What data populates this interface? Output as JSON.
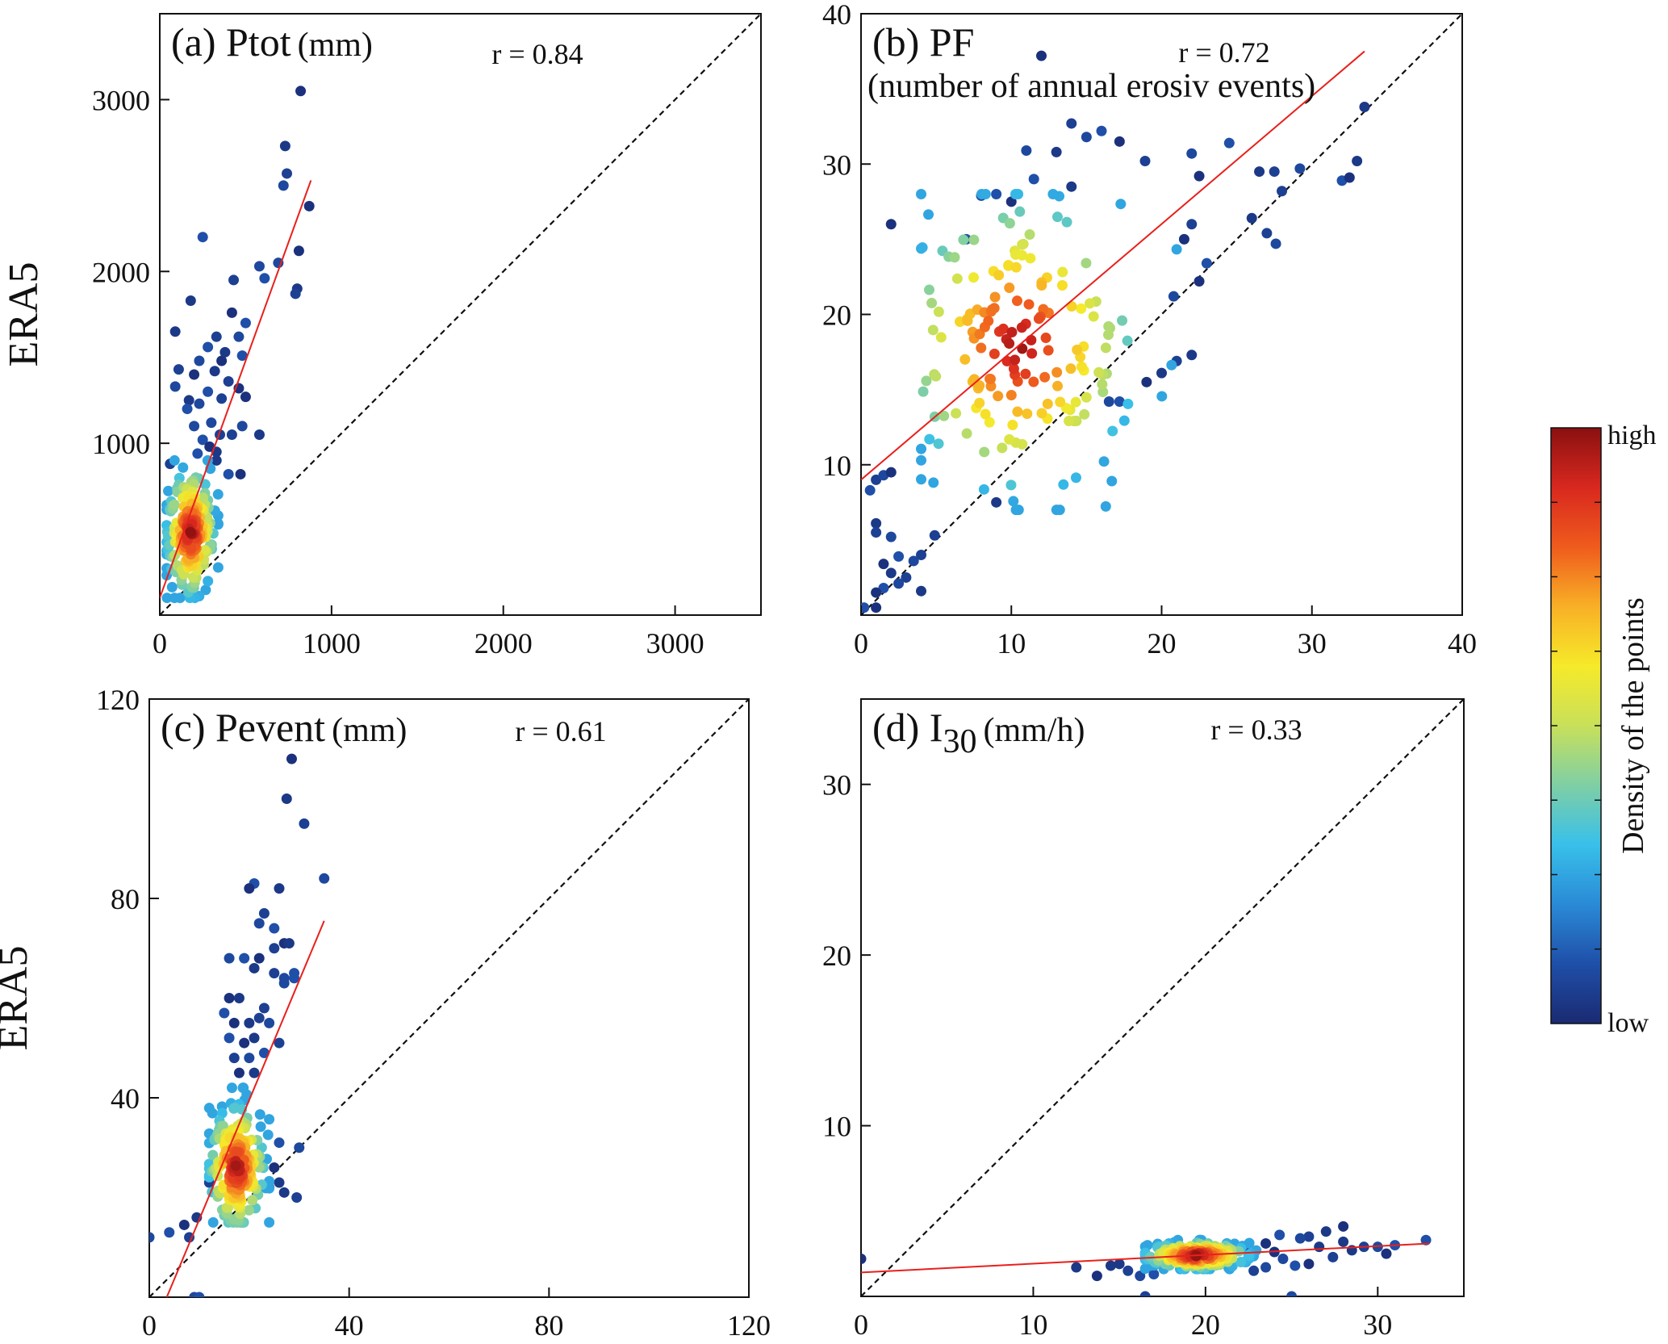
{
  "chart_data": [
    {
      "id": "a",
      "type": "scatter",
      "title": "(a) Ptot",
      "unit": "(mm)",
      "r_label": "r = 0.84",
      "ylabel": "ERA5",
      "xlim": [
        0,
        3500
      ],
      "ylim": [
        0,
        3500
      ],
      "xticks": [
        "0",
        "1000",
        "2000",
        "3000"
      ],
      "xtick_values": [
        0,
        1000,
        2000,
        3000
      ],
      "yticks": [
        "1000",
        "2000",
        "3000"
      ],
      "ytick_values": [
        1000,
        2000,
        3000
      ],
      "fit_line": [
        [
          0,
          100
        ],
        [
          880,
          2530
        ]
      ],
      "identity_line": true,
      "points": [
        [
          820,
          3050
        ],
        [
          730,
          2730
        ],
        [
          740,
          2570
        ],
        [
          720,
          2500
        ],
        [
          250,
          2200
        ],
        [
          870,
          2380
        ],
        [
          180,
          1830
        ],
        [
          430,
          1950
        ],
        [
          580,
          2030
        ],
        [
          610,
          1960
        ],
        [
          810,
          2120
        ],
        [
          800,
          1900
        ],
        [
          790,
          1870
        ],
        [
          690,
          2050
        ],
        [
          500,
          1700
        ],
        [
          420,
          1760
        ],
        [
          90,
          1650
        ],
        [
          330,
          1620
        ],
        [
          460,
          1620
        ],
        [
          280,
          1560
        ],
        [
          360,
          1480
        ],
        [
          380,
          1530
        ],
        [
          110,
          1430
        ],
        [
          230,
          1480
        ],
        [
          480,
          1510
        ],
        [
          200,
          1400
        ],
        [
          320,
          1420
        ],
        [
          400,
          1360
        ],
        [
          90,
          1330
        ],
        [
          280,
          1300
        ],
        [
          460,
          1320
        ],
        [
          170,
          1250
        ],
        [
          360,
          1260
        ],
        [
          230,
          1230
        ],
        [
          160,
          1200
        ],
        [
          500,
          1270
        ],
        [
          580,
          1050
        ],
        [
          420,
          1050
        ],
        [
          480,
          1100
        ],
        [
          400,
          820
        ],
        [
          470,
          820
        ],
        [
          330,
          900
        ],
        [
          60,
          880
        ],
        [
          200,
          1100
        ],
        [
          250,
          1020
        ],
        [
          290,
          980
        ],
        [
          330,
          950
        ],
        [
          350,
          1050
        ],
        [
          300,
          1120
        ],
        [
          220,
          940
        ]
      ],
      "cluster": {
        "x": [
          40,
          340
        ],
        "y": [
          100,
          900
        ],
        "center": [
          180,
          480
        ],
        "count": 200
      }
    },
    {
      "id": "b",
      "type": "scatter",
      "title": "(b) PF",
      "subtitle": "(number of annual erosiv events)",
      "r_label": "r = 0.72",
      "ylabel": "",
      "xlim": [
        0,
        40
      ],
      "ylim": [
        0,
        40
      ],
      "xticks": [
        "0",
        "10",
        "20",
        "30",
        "40"
      ],
      "xtick_values": [
        0,
        10,
        20,
        30,
        40
      ],
      "yticks": [
        "10",
        "20",
        "30",
        "40"
      ],
      "ytick_values": [
        10,
        20,
        30,
        40
      ],
      "fit_line": [
        [
          0,
          9
        ],
        [
          33.5,
          37.5
        ]
      ],
      "identity_line": true,
      "points": [
        [
          12,
          37.2
        ],
        [
          33.5,
          33.8
        ],
        [
          14,
          32.7
        ],
        [
          15,
          31.8
        ],
        [
          16,
          32.2
        ],
        [
          17.2,
          31.5
        ],
        [
          13,
          30.8
        ],
        [
          18.9,
          30.2
        ],
        [
          22,
          30.7
        ],
        [
          24.5,
          31.4
        ],
        [
          22.5,
          29.2
        ],
        [
          26.5,
          29.5
        ],
        [
          27.5,
          29.5
        ],
        [
          29.2,
          29.7
        ],
        [
          32,
          28.9
        ],
        [
          32.5,
          29.1
        ],
        [
          33,
          30.2
        ],
        [
          28,
          28.2
        ],
        [
          11,
          30.9
        ],
        [
          11.5,
          29
        ],
        [
          2,
          26
        ],
        [
          26,
          26.4
        ],
        [
          27,
          25.4
        ],
        [
          27.6,
          24.7
        ],
        [
          23,
          23.4
        ],
        [
          22.5,
          22.2
        ],
        [
          22,
          17.3
        ],
        [
          1,
          9
        ],
        [
          1.5,
          9.3
        ],
        [
          0.6,
          8.3
        ],
        [
          2,
          9.5
        ],
        [
          1,
          6.1
        ],
        [
          1,
          5.5
        ],
        [
          2,
          5.2
        ],
        [
          2.5,
          3.9
        ],
        [
          1.5,
          3.4
        ],
        [
          2,
          2.8
        ],
        [
          3,
          2.5
        ],
        [
          2.5,
          2.1
        ],
        [
          1.5,
          1.8
        ],
        [
          1,
          1.5
        ],
        [
          4,
          1.6
        ],
        [
          4,
          4
        ],
        [
          3.5,
          3.6
        ],
        [
          0.2,
          0.5
        ],
        [
          1,
          0.5
        ],
        [
          9,
          7.5
        ],
        [
          4.9,
          5.3
        ],
        [
          16.5,
          14.2
        ],
        [
          17.2,
          14.2
        ],
        [
          19,
          15.5
        ],
        [
          20,
          16.1
        ],
        [
          21,
          16.9
        ],
        [
          8,
          27.9
        ],
        [
          9,
          28
        ],
        [
          10,
          27.5
        ],
        [
          14,
          28.5
        ],
        [
          22,
          26
        ],
        [
          20.8,
          21.2
        ],
        [
          7,
          25
        ],
        [
          21.5,
          25
        ]
      ],
      "cluster": {
        "x": [
          4,
          21
        ],
        "y": [
          7,
          28
        ],
        "center": [
          10.5,
          18
        ],
        "count": 180
      }
    },
    {
      "id": "c",
      "type": "scatter",
      "title": "(c) Pevent",
      "unit": "(mm)",
      "r_label": "r = 0.61",
      "ylabel": "ERA5",
      "xlim": [
        0,
        120
      ],
      "ylim": [
        0,
        120
      ],
      "xticks": [
        "0",
        "40",
        "80",
        "120"
      ],
      "xtick_values": [
        0,
        40,
        80,
        120
      ],
      "yticks": [
        "40",
        "80",
        "120"
      ],
      "ytick_values": [
        40,
        80,
        120
      ],
      "fit_line": [
        [
          3.5,
          0
        ],
        [
          35,
          75.5
        ]
      ],
      "identity_line": true,
      "points": [
        [
          28.5,
          108
        ],
        [
          27.5,
          100
        ],
        [
          31,
          95
        ],
        [
          35,
          84
        ],
        [
          21,
          83
        ],
        [
          20,
          82
        ],
        [
          26,
          82
        ],
        [
          23,
          77
        ],
        [
          22,
          75
        ],
        [
          25,
          74
        ],
        [
          27,
          71
        ],
        [
          28,
          71
        ],
        [
          25,
          70
        ],
        [
          16,
          68
        ],
        [
          19,
          68
        ],
        [
          22,
          68
        ],
        [
          21,
          66
        ],
        [
          25,
          65
        ],
        [
          27,
          64
        ],
        [
          29,
          65
        ],
        [
          16,
          60
        ],
        [
          18,
          60
        ],
        [
          23,
          58
        ],
        [
          27,
          63
        ],
        [
          15,
          57
        ],
        [
          17,
          55
        ],
        [
          20,
          55
        ],
        [
          22,
          56
        ],
        [
          24,
          55
        ],
        [
          16,
          52
        ],
        [
          19,
          51
        ],
        [
          21,
          52
        ],
        [
          17,
          48
        ],
        [
          20,
          48
        ],
        [
          23,
          49
        ],
        [
          18,
          45
        ],
        [
          21,
          45
        ],
        [
          26,
          51
        ],
        [
          0,
          12
        ],
        [
          4,
          13
        ],
        [
          7,
          14.5
        ],
        [
          9.5,
          16
        ],
        [
          8,
          12
        ],
        [
          9,
          0
        ],
        [
          10,
          0
        ],
        [
          24,
          22
        ],
        [
          27,
          21
        ],
        [
          29.5,
          20
        ],
        [
          30,
          30
        ],
        [
          26,
          31
        ],
        [
          25,
          26
        ],
        [
          26,
          23
        ],
        [
          12,
          23
        ],
        [
          13,
          26
        ],
        [
          29,
          64
        ]
      ],
      "cluster": {
        "x": [
          12,
          24
        ],
        "y": [
          15,
          42
        ],
        "center": [
          17.5,
          26
        ],
        "count": 200
      }
    },
    {
      "id": "d",
      "type": "scatter",
      "title": "(d) I",
      "subscript": "30",
      "unit": "(mm/h)",
      "r_label": "r = 0.33",
      "ylabel": "",
      "xlim": [
        0,
        35
      ],
      "ylim": [
        0,
        35
      ],
      "xticks": [
        "0",
        "10",
        "20",
        "30"
      ],
      "xtick_values": [
        0,
        10,
        20,
        30
      ],
      "yticks": [
        "10",
        "20",
        "30"
      ],
      "ytick_values": [
        10,
        20,
        30
      ],
      "fit_line": [
        [
          0,
          1.4
        ],
        [
          33,
          3.1
        ]
      ],
      "identity_line": true,
      "points": [
        [
          0,
          2.2
        ],
        [
          12.5,
          1.7
        ],
        [
          16.5,
          0
        ],
        [
          25,
          0
        ],
        [
          32.8,
          3.3
        ],
        [
          28,
          4.1
        ],
        [
          27,
          3.8
        ],
        [
          26,
          3.5
        ],
        [
          25.5,
          3.4
        ],
        [
          24.3,
          3.6
        ],
        [
          23.5,
          3.1
        ],
        [
          26.6,
          2.9
        ],
        [
          29.2,
          2.9
        ],
        [
          30,
          2.9
        ],
        [
          31,
          3
        ],
        [
          30.5,
          2.5
        ],
        [
          28.5,
          2.7
        ],
        [
          27.4,
          2.3
        ],
        [
          24.5,
          2.2
        ],
        [
          25.2,
          1.8
        ],
        [
          26,
          1.9
        ],
        [
          14.5,
          1.8
        ],
        [
          15.5,
          1.5
        ],
        [
          16.2,
          1.2
        ],
        [
          17,
          1.3
        ],
        [
          13.7,
          1.2
        ],
        [
          15,
          1.9
        ],
        [
          22.8,
          1.5
        ],
        [
          23.5,
          1.7
        ],
        [
          22.3,
          2.8
        ],
        [
          24,
          2.6
        ],
        [
          28,
          3.2
        ]
      ],
      "cluster": {
        "x": [
          16.5,
          23
        ],
        "y": [
          1.6,
          3.3
        ],
        "center": [
          19.5,
          2.4
        ],
        "count": 220
      }
    }
  ],
  "colorbar": {
    "title": "Density of the points",
    "high_label": "high",
    "low_label": "low",
    "colors": [
      "#1a2a72",
      "#1f4fa8",
      "#2a8ad6",
      "#38c0ea",
      "#7fcfa5",
      "#c8e05a",
      "#f6ea2a",
      "#f8b026",
      "#ef5b1d",
      "#d8281f",
      "#8a1010"
    ]
  },
  "colors": {
    "fit_line": "#e8201c",
    "identity_line": "#111111",
    "axes": "#111111"
  }
}
